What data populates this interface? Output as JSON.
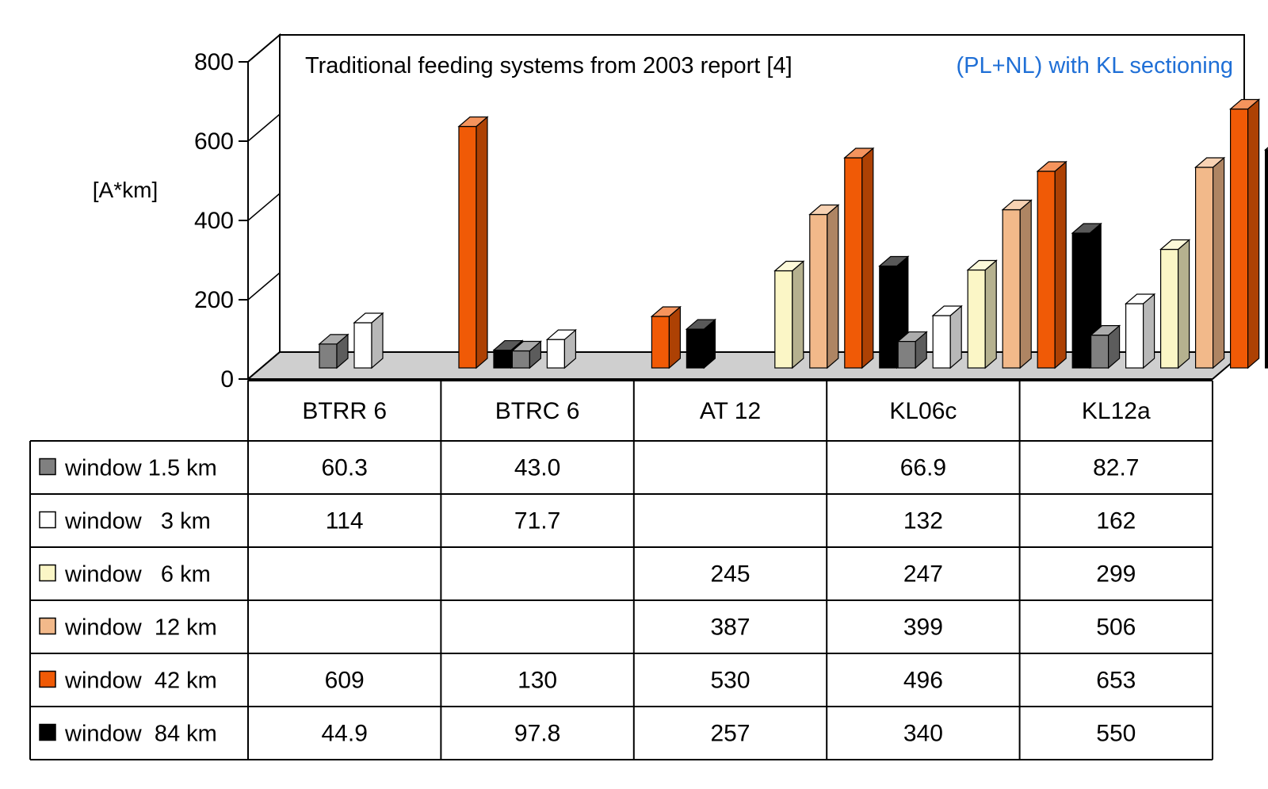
{
  "chart_data": {
    "type": "bar",
    "title": "",
    "ylabel": "[A*km]",
    "xlabel": "",
    "ylim": [
      0,
      800
    ],
    "yticks": [
      0,
      200,
      400,
      600,
      800
    ],
    "categories": [
      "BTRR 6",
      "BTRC 6",
      "AT 12",
      "KL06c",
      "KL12a"
    ],
    "annotations": [
      {
        "text": "Traditional feeding systems  from  2003 report [4]",
        "color": "#000000"
      },
      {
        "text": "(PL+NL) with KL  sectioning",
        "color": "#1f6fd6"
      }
    ],
    "series": [
      {
        "name": "window 1.5 km",
        "color": "#808080",
        "values": [
          60.3,
          43.0,
          null,
          66.9,
          82.7
        ]
      },
      {
        "name": "window   3 km",
        "color": "#ffffff",
        "values": [
          114,
          71.7,
          null,
          132,
          162
        ]
      },
      {
        "name": "window   6 km",
        "color": "#fbf6c6",
        "values": [
          null,
          null,
          245,
          247,
          299
        ]
      },
      {
        "name": "window  12 km",
        "color": "#f2b98a",
        "values": [
          null,
          null,
          387,
          399,
          506
        ]
      },
      {
        "name": "window  42 km",
        "color": "#f05a06",
        "values": [
          609,
          130,
          530,
          496,
          653
        ]
      },
      {
        "name": "window  84 km",
        "color": "#000000",
        "values": [
          44.9,
          97.8,
          257,
          340,
          550
        ]
      }
    ],
    "table_text": [
      [
        "60.3",
        "43.0",
        "",
        "66.9",
        "82.7"
      ],
      [
        "114",
        "71.7",
        "",
        "132",
        "162"
      ],
      [
        "",
        "",
        "245",
        "247",
        "299"
      ],
      [
        "",
        "",
        "387",
        "399",
        "506"
      ],
      [
        "609",
        "130",
        "530",
        "496",
        "653"
      ],
      [
        "44.9",
        "97.8",
        "257",
        "340",
        "550"
      ]
    ]
  }
}
